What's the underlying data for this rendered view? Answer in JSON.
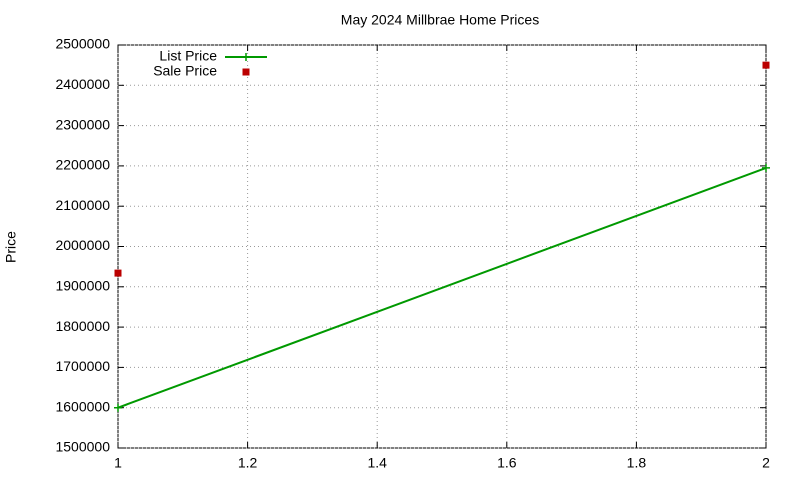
{
  "chart_data": {
    "type": "line",
    "title": "May 2024 Millbrae Home Prices",
    "y_label": "Price",
    "x": [
      1,
      2
    ],
    "series": [
      {
        "name": "List Price",
        "color": "#009900",
        "mode": "linespoints",
        "values": [
          1600000,
          2195000
        ]
      },
      {
        "name": "Sale Price",
        "color": "#bb0000",
        "mode": "points",
        "values": [
          1934000,
          2450000
        ]
      }
    ],
    "xlim": [
      1,
      2
    ],
    "xticks": [
      1,
      1.2,
      1.4,
      1.6,
      1.8,
      2
    ],
    "ylim": [
      1500000,
      2500000
    ],
    "yticks": [
      1500000,
      1600000,
      1700000,
      1800000,
      1900000,
      2000000,
      2100000,
      2200000,
      2300000,
      2400000,
      2500000
    ],
    "grid": true,
    "legend": "top-left"
  }
}
